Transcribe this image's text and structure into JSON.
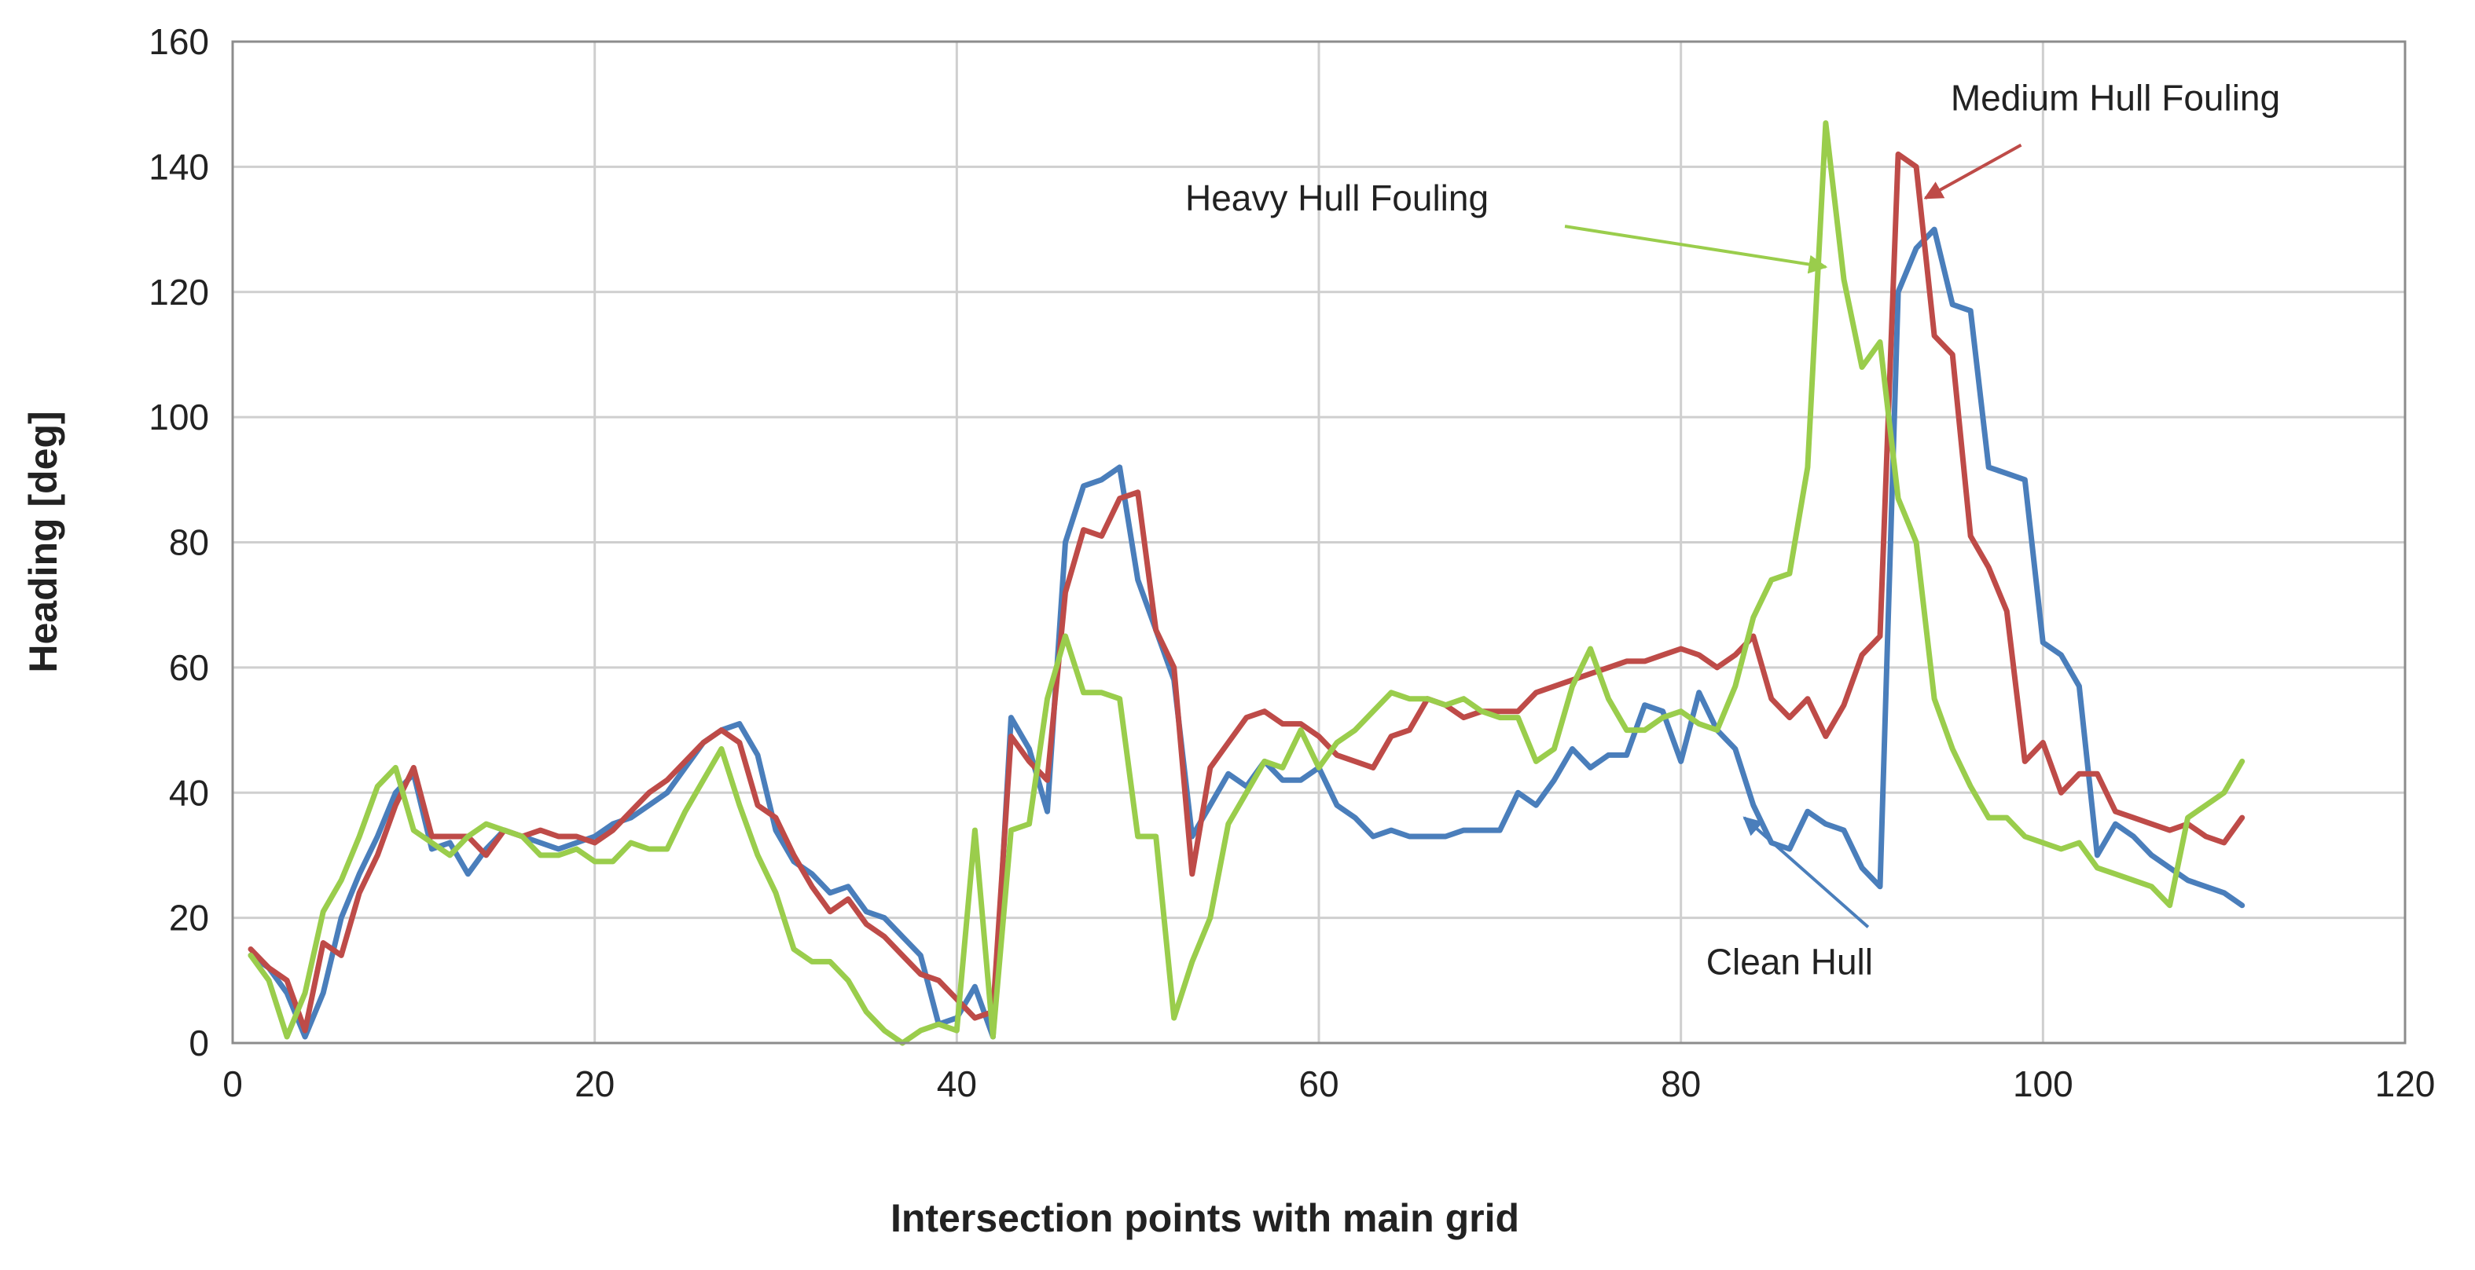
{
  "chart_data": {
    "type": "line",
    "xlabel": "Intersection points with main grid",
    "ylabel": "Heading [deg]",
    "xlim": [
      0,
      120
    ],
    "ylim": [
      0,
      160
    ],
    "xticks": [
      0,
      20,
      40,
      60,
      80,
      100,
      120
    ],
    "yticks": [
      0,
      20,
      40,
      60,
      80,
      100,
      120,
      140,
      160
    ],
    "grid": true,
    "legend": "none",
    "series": [
      {
        "name": "Clean Hull",
        "color": "#4a7ebb",
        "x": [
          1,
          2,
          3,
          4,
          5,
          6,
          7,
          8,
          9,
          10,
          11,
          12,
          13,
          14,
          15,
          16,
          17,
          18,
          19,
          20,
          21,
          22,
          23,
          24,
          25,
          26,
          27,
          28,
          29,
          30,
          31,
          32,
          33,
          34,
          35,
          36,
          37,
          38,
          39,
          40,
          41,
          42,
          43,
          44,
          45,
          46,
          47,
          48,
          49,
          50,
          51,
          52,
          53,
          54,
          55,
          56,
          57,
          58,
          59,
          60,
          61,
          62,
          63,
          64,
          65,
          66,
          67,
          68,
          69,
          70,
          71,
          72,
          73,
          74,
          75,
          76,
          77,
          78,
          79,
          80,
          81,
          82,
          83,
          84,
          85,
          86,
          87,
          88,
          89,
          90,
          91,
          92,
          93,
          94,
          95,
          96,
          97,
          98,
          99,
          100,
          101,
          102,
          103,
          104,
          105,
          106,
          107,
          108,
          109,
          110,
          111
        ],
        "y": [
          14,
          12,
          8,
          1,
          8,
          20,
          27,
          33,
          40,
          43,
          31,
          32,
          27,
          31,
          34,
          33,
          32,
          31,
          32,
          33,
          35,
          36,
          38,
          40,
          44,
          48,
          50,
          51,
          46,
          34,
          29,
          27,
          24,
          25,
          21,
          20,
          17,
          14,
          3,
          4,
          9,
          1,
          52,
          47,
          37,
          80,
          89,
          90,
          92,
          74,
          66,
          58,
          33,
          38,
          43,
          41,
          45,
          42,
          42,
          44,
          38,
          36,
          33,
          34,
          33,
          33,
          33,
          34,
          34,
          34,
          40,
          38,
          42,
          47,
          44,
          46,
          46,
          54,
          53,
          45,
          56,
          50,
          47,
          38,
          32,
          31,
          37,
          35,
          34,
          28,
          25,
          120,
          127,
          130,
          118,
          117,
          92,
          91,
          90,
          64,
          62,
          57,
          30,
          35,
          33,
          30,
          28,
          26,
          25,
          24,
          22
        ]
      },
      {
        "name": "Medium Hull Fouling",
        "color": "#be4b48",
        "x": [
          1,
          2,
          3,
          4,
          5,
          6,
          7,
          8,
          9,
          10,
          11,
          12,
          13,
          14,
          15,
          16,
          17,
          18,
          19,
          20,
          21,
          22,
          23,
          24,
          25,
          26,
          27,
          28,
          29,
          30,
          31,
          32,
          33,
          34,
          35,
          36,
          37,
          38,
          39,
          40,
          41,
          42,
          43,
          44,
          45,
          46,
          47,
          48,
          49,
          50,
          51,
          52,
          53,
          54,
          55,
          56,
          57,
          58,
          59,
          60,
          61,
          62,
          63,
          64,
          65,
          66,
          67,
          68,
          69,
          70,
          71,
          72,
          73,
          74,
          75,
          76,
          77,
          78,
          79,
          80,
          81,
          82,
          83,
          84,
          85,
          86,
          87,
          88,
          89,
          90,
          91,
          92,
          93,
          94,
          95,
          96,
          97,
          98,
          99,
          100,
          101,
          102,
          103,
          104,
          105,
          106,
          107,
          108,
          109,
          110,
          111
        ],
        "y": [
          15,
          12,
          10,
          2,
          16,
          14,
          24,
          30,
          38,
          44,
          33,
          33,
          33,
          30,
          34,
          33,
          34,
          33,
          33,
          32,
          34,
          37,
          40,
          42,
          45,
          48,
          50,
          48,
          38,
          36,
          30,
          25,
          21,
          23,
          19,
          17,
          14,
          11,
          10,
          7,
          4,
          5,
          49,
          45,
          42,
          72,
          82,
          81,
          87,
          88,
          66,
          60,
          27,
          44,
          48,
          52,
          53,
          51,
          51,
          49,
          46,
          45,
          44,
          49,
          50,
          55,
          54,
          52,
          53,
          53,
          53,
          56,
          57,
          58,
          59,
          60,
          61,
          61,
          62,
          63,
          62,
          60,
          62,
          65,
          55,
          52,
          55,
          49,
          54,
          62,
          65,
          142,
          140,
          113,
          110,
          81,
          76,
          69,
          45,
          48,
          40,
          43,
          43,
          37,
          36,
          35,
          34,
          35,
          33,
          32,
          36
        ]
      },
      {
        "name": "Heavy Hull Fouling",
        "color": "#9acd4c",
        "x": [
          1,
          2,
          3,
          4,
          5,
          6,
          7,
          8,
          9,
          10,
          11,
          12,
          13,
          14,
          15,
          16,
          17,
          18,
          19,
          20,
          21,
          22,
          23,
          24,
          25,
          26,
          27,
          28,
          29,
          30,
          31,
          32,
          33,
          34,
          35,
          36,
          37,
          38,
          39,
          40,
          41,
          42,
          43,
          44,
          45,
          46,
          47,
          48,
          49,
          50,
          51,
          52,
          53,
          54,
          55,
          56,
          57,
          58,
          59,
          60,
          61,
          62,
          63,
          64,
          65,
          66,
          67,
          68,
          69,
          70,
          71,
          72,
          73,
          74,
          75,
          76,
          77,
          78,
          79,
          80,
          81,
          82,
          83,
          84,
          85,
          86,
          87,
          88,
          89,
          90,
          91,
          92,
          93,
          94,
          95,
          96,
          97,
          98,
          99,
          100,
          101,
          102,
          103,
          104,
          105,
          106,
          107,
          108,
          109,
          110,
          111
        ],
        "y": [
          14,
          10,
          1,
          8,
          21,
          26,
          33,
          41,
          44,
          34,
          32,
          30,
          33,
          35,
          34,
          33,
          30,
          30,
          31,
          29,
          29,
          32,
          31,
          31,
          37,
          42,
          47,
          38,
          30,
          24,
          15,
          13,
          13,
          10,
          5,
          2,
          0,
          2,
          3,
          2,
          34,
          1,
          34,
          35,
          55,
          65,
          56,
          56,
          55,
          33,
          33,
          4,
          13,
          20,
          35,
          40,
          45,
          44,
          50,
          44,
          48,
          50,
          53,
          56,
          55,
          55,
          54,
          55,
          53,
          52,
          52,
          45,
          47,
          57,
          63,
          55,
          50,
          50,
          52,
          53,
          51,
          50,
          57,
          68,
          74,
          75,
          92,
          147,
          122,
          108,
          112,
          87,
          80,
          55,
          47,
          41,
          36,
          36,
          33,
          32,
          31,
          32,
          28,
          27,
          26,
          25,
          22,
          36,
          38,
          40,
          45
        ]
      }
    ],
    "annotations": [
      {
        "text": "Medium Hull Fouling",
        "series": "Medium Hull Fouling",
        "x": 104,
        "y": 149,
        "arrow_to": [
          93.5,
          135
        ]
      },
      {
        "text": "Heavy Hull Fouling",
        "series": "Heavy Hull Fouling",
        "x": 61,
        "y": 133,
        "arrow_to": [
          88,
          124
        ]
      },
      {
        "text": "Clean Hull",
        "series": "Clean Hull",
        "x": 86,
        "y": 11,
        "arrow_to": [
          83.5,
          36
        ]
      }
    ]
  }
}
